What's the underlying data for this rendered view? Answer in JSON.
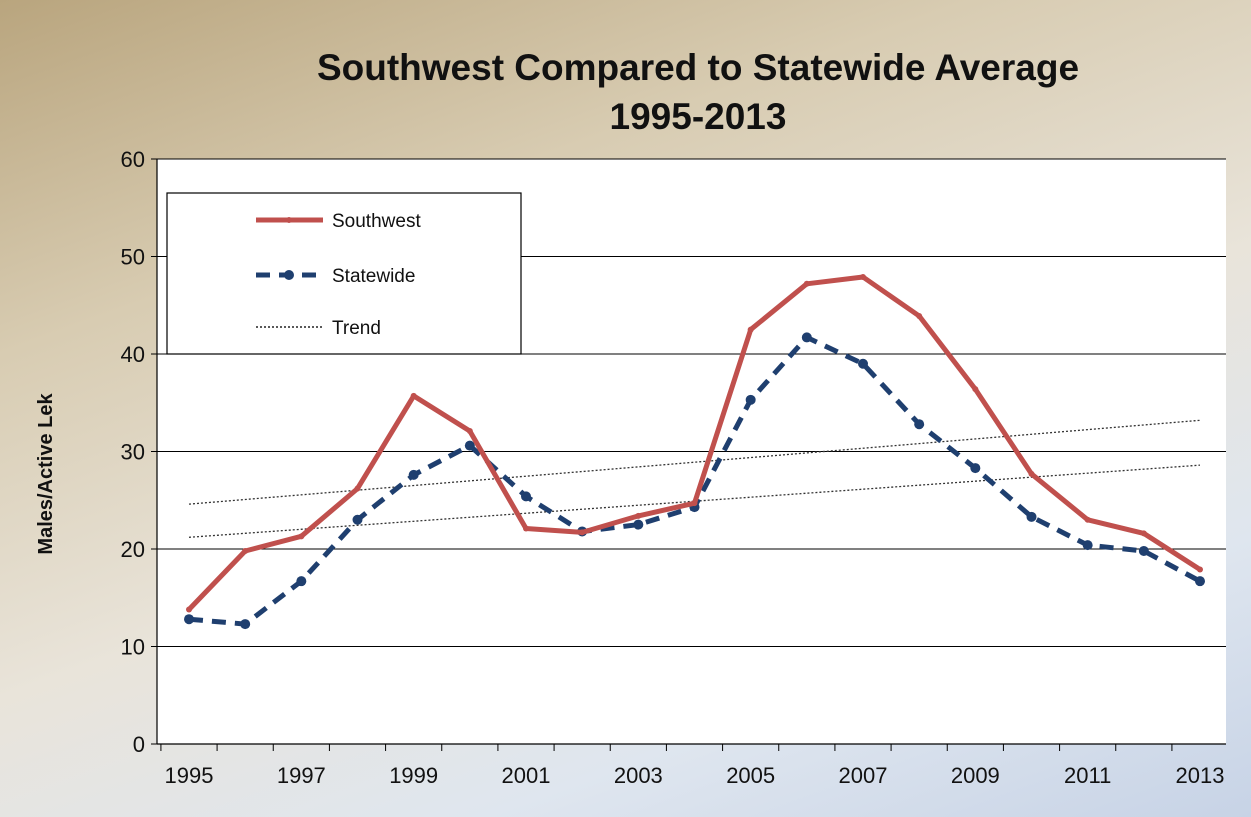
{
  "chart_data": {
    "type": "line",
    "title": "Southwest  Compared to Statewide Average",
    "subtitle": "1995-2013",
    "xlabel": "",
    "ylabel": "Males/Active Lek",
    "ylim": [
      0,
      60
    ],
    "y_ticks": [
      "0",
      "10",
      "20",
      "30",
      "40",
      "50",
      "60"
    ],
    "x_tick_labels": [
      "1995",
      "1997",
      "1999",
      "2001",
      "2003",
      "2005",
      "2007",
      "2009",
      "2011",
      "2013"
    ],
    "x": [
      1995,
      1996,
      1997,
      1998,
      1999,
      2000,
      2001,
      2002,
      2003,
      2004,
      2005,
      2006,
      2007,
      2008,
      2009,
      2010,
      2011,
      2012,
      2013
    ],
    "grid": "horizontal",
    "legend_position": "top-left",
    "series": [
      {
        "name": "Southwest",
        "color": "#c0504d",
        "style": "solid",
        "values": [
          13.8,
          19.8,
          21.3,
          26.2,
          35.7,
          32.1,
          22.1,
          21.7,
          23.4,
          24.7,
          42.5,
          47.2,
          47.9,
          43.9,
          36.4,
          27.7,
          23.0,
          21.6,
          17.9
        ]
      },
      {
        "name": "Statewide",
        "color": "#1f3f6f",
        "style": "dashed",
        "values": [
          12.8,
          12.3,
          16.7,
          23.0,
          27.6,
          30.6,
          25.4,
          21.8,
          22.5,
          24.3,
          35.3,
          41.7,
          39.0,
          32.8,
          28.3,
          23.3,
          20.4,
          19.8,
          16.7
        ]
      }
    ],
    "trendlines": [
      {
        "label": "Trend",
        "start": [
          1995,
          24.6
        ],
        "end": [
          2013,
          33.2
        ]
      },
      {
        "label": "Trend",
        "start": [
          1995,
          21.2
        ],
        "end": [
          2013,
          28.6
        ]
      }
    ],
    "legend": [
      "Southwest",
      "Statewide",
      "Trend"
    ]
  }
}
